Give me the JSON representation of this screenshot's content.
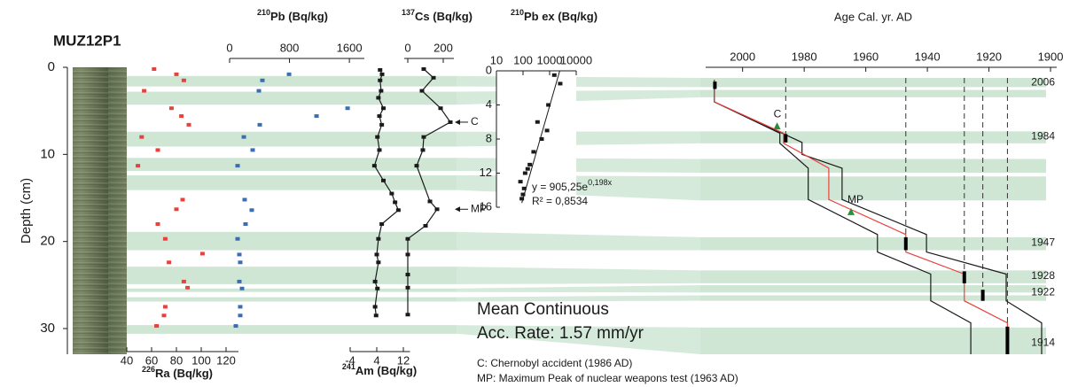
{
  "figure": {
    "core": "MUZ12P1",
    "depth_label": "Depth (cm)",
    "ylim": [
      0,
      30
    ],
    "yticks": [
      0,
      10,
      20,
      30
    ],
    "bands": [
      [
        1.0,
        2.2
      ],
      [
        2.8,
        4.3
      ],
      [
        7.4,
        9.1
      ],
      [
        10.4,
        11.9
      ],
      [
        12.4,
        14.1
      ],
      [
        18.9,
        21.0
      ],
      [
        22.9,
        24.9
      ],
      [
        25.4,
        25.8
      ],
      [
        26.4,
        26.9
      ],
      [
        29.6,
        30.6
      ]
    ],
    "rate_line1": "Mean Continuous",
    "rate_line2": "Acc. Rate: 1.57 mm/yr",
    "notes": [
      "C: Chernobyl accident (1986 AD)",
      "MP: Maximum Peak of nuclear weapons test (1963 AD)"
    ]
  },
  "chart_data": [
    {
      "type": "scatter",
      "x_label_sup": "226",
      "x_label": "Ra (Bq/kg)",
      "color": "#e8413c",
      "xlim": [
        40,
        130
      ],
      "xticks": [
        40,
        60,
        80,
        100,
        120
      ],
      "x": [
        62,
        80,
        86,
        54,
        76,
        84,
        90,
        52,
        65,
        49,
        85,
        80,
        65,
        71,
        101,
        74,
        86,
        89,
        71,
        70,
        64
      ],
      "y": [
        0.2,
        0.8,
        1.5,
        2.7,
        4.7,
        5.6,
        6.6,
        8.0,
        9.5,
        11.3,
        15.2,
        16.3,
        18.0,
        19.7,
        21.4,
        22.4,
        24.6,
        25.3,
        27.5,
        28.5,
        29.7
      ]
    },
    {
      "type": "scatter",
      "x_label_sup": "210",
      "x_label": "Pb (Bq/kg)",
      "color": "#3b6db3",
      "xlim": [
        0,
        1800
      ],
      "xticks": [
        0,
        800,
        1600
      ],
      "x": [
        794,
        438,
        391,
        1576,
        1161,
        403,
        190,
        308,
        107,
        201,
        296,
        213,
        107,
        130,
        142,
        130,
        166,
        142,
        142,
        83
      ],
      "y": [
        0.8,
        1.5,
        2.7,
        4.7,
        5.6,
        6.6,
        8.0,
        9.5,
        11.3,
        15.2,
        16.4,
        18.0,
        19.7,
        21.5,
        22.4,
        24.6,
        25.4,
        27.5,
        28.5,
        29.7
      ]
    },
    {
      "type": "scatter",
      "x_label_sup": "241",
      "x_label": "Am (Bq/kg)",
      "color": "#1a1a1a",
      "lines": true,
      "xlim": [
        -4,
        14
      ],
      "xticks": [
        -4,
        4,
        12
      ],
      "x": [
        5,
        5.6,
        5,
        5.3,
        4.5,
        6,
        4.8,
        5.5,
        4.2,
        4.8,
        3.3,
        6,
        8.5,
        9.5,
        10.5,
        5.5,
        4.5,
        4,
        4.5,
        3.5,
        4.2,
        3.5,
        3.8
      ],
      "y": [
        0.3,
        0.8,
        1.5,
        2.7,
        3.5,
        4.7,
        5.6,
        6.6,
        8.0,
        9.5,
        11.3,
        13.0,
        14.5,
        15.5,
        16.4,
        18.0,
        19.7,
        21.5,
        22.4,
        24.6,
        25.4,
        27.5,
        28.5
      ]
    },
    {
      "type": "scatter",
      "x_label_sup": "137",
      "x_label": "Cs (Bq/kg)",
      "color": "#1a1a1a",
      "lines": true,
      "xlim": [
        -20,
        260
      ],
      "xticks": [
        0,
        200
      ],
      "x": [
        90,
        145,
        80,
        185,
        240,
        90,
        85,
        50,
        125,
        165,
        100,
        0,
        0,
        0,
        0,
        0
      ],
      "y": [
        0.2,
        1.2,
        2.7,
        4.7,
        6.3,
        8.0,
        9.5,
        11.3,
        15.4,
        16.3,
        18.2,
        19.7,
        21.5,
        23.8,
        25.3,
        28.4
      ],
      "annotations": [
        {
          "text": "C",
          "y": 6.3
        },
        {
          "text": "MP",
          "y": 16.3
        }
      ]
    },
    {
      "type": "scatter",
      "x_label_sup": "210",
      "x_label": "Pb ex (Bq/kg)",
      "color": "#1a1a1a",
      "xscale": "log",
      "xlim": [
        10,
        10000
      ],
      "xticks": [
        10,
        100,
        1000,
        10000
      ],
      "ylim": [
        0,
        16
      ],
      "yticks": [
        0,
        4,
        8,
        12,
        16
      ],
      "x": [
        1500,
        2500,
        900,
        350,
        800,
        500,
        250,
        180,
        150,
        120,
        80,
        110,
        100,
        90
      ],
      "y": [
        0.5,
        1.5,
        4,
        6,
        7,
        8,
        9.5,
        11,
        11.5,
        12,
        13,
        13.8,
        14.5,
        15
      ],
      "fit": {
        "x": [
          2400,
          90
        ],
        "y": [
          0,
          15.5
        ]
      },
      "equation": "y = 905,25e",
      "equation_exp": "0,198x",
      "r2": "R² = 0,8534"
    },
    {
      "type": "line",
      "x_label": "Age Cal. yr. AD",
      "xlim": [
        2012,
        1898
      ],
      "xticks": [
        2000,
        1980,
        1960,
        1940,
        1920,
        1900
      ],
      "ylim": [
        0,
        30
      ],
      "bands": [
        [
          0,
          1.0
        ],
        [
          1.3,
          2.1
        ],
        [
          5.8,
          7.1
        ],
        [
          8.8,
          10.3
        ],
        [
          10.7,
          13.3
        ],
        [
          17.3,
          18.7
        ],
        [
          20.9,
          22.3
        ],
        [
          22.5,
          23.3
        ],
        [
          23.6,
          24.2
        ],
        [
          27.1,
          30
        ]
      ],
      "series": [
        {
          "color": "#1a1a1a",
          "x": [
            2009.2,
            2009.2,
            1987.9,
            1987.9,
            1978.7,
            1978.7,
            1956.2,
            1956.2,
            1938.9,
            1938.9,
            1925.9,
            1925.9
          ],
          "y": [
            0.2,
            2.6,
            6.0,
            7.1,
            9.8,
            13.2,
            17.0,
            18.9,
            21.3,
            24.2,
            26.6,
            30
          ]
        },
        {
          "color": "#1a1a1a",
          "x": [
            2009.2,
            2009.2,
            1980.7,
            1980.7,
            1967.7,
            1967.7,
            1940.3,
            1940.3,
            1914.4,
            1914.4,
            1902.9,
            1902.9
          ],
          "y": [
            0.2,
            2.6,
            7.0,
            8.3,
            9.8,
            13.2,
            17.0,
            18.9,
            21.3,
            24.2,
            26.6,
            30
          ]
        },
        {
          "color": "#e8413c",
          "x": [
            2009.2,
            2009.2,
            1986.7,
            1986.7,
            1972,
            1972,
            1947,
            1947,
            1928,
            1928,
            1914,
            1914
          ],
          "y": [
            0.2,
            2.6,
            6.0,
            7.1,
            9.8,
            13.2,
            17.0,
            18.9,
            21.3,
            24.2,
            26.6,
            30
          ]
        }
      ],
      "dates": [
        {
          "year": 2009,
          "y": [
            0.4,
            1.2
          ],
          "dashed": false
        },
        {
          "year": 1986,
          "y": [
            6.1,
            7.0
          ],
          "dashed": true
        },
        {
          "year": 1947,
          "y": [
            17.3,
            18.7
          ],
          "dashed": true
        },
        {
          "year": 1928,
          "y": [
            21.0,
            22.3
          ],
          "dashed": true
        },
        {
          "year": 1922,
          "y": [
            23.0,
            24.2
          ],
          "dashed": true
        },
        {
          "year": 1914,
          "y": [
            27.0,
            30
          ],
          "dashed": true
        }
      ],
      "markers": [
        {
          "text": "C",
          "x": 1988.8,
          "y": 5.3
        },
        {
          "text": "MP",
          "x": 1964.8,
          "y": 14.6
        }
      ],
      "band_labels": [
        {
          "text": "2006",
          "y": 0.5
        },
        {
          "text": "1984",
          "y": 6.4
        },
        {
          "text": "1947",
          "y": 17.9
        },
        {
          "text": "1928",
          "y": 21.5
        },
        {
          "text": "1922",
          "y": 23.3
        },
        {
          "text": "1914",
          "y": 28.8
        }
      ]
    }
  ]
}
